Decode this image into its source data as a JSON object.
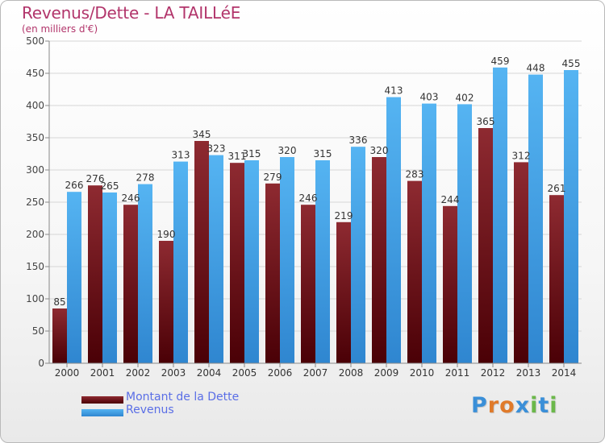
{
  "title": "Revenus/Dette - LA TAILLéE",
  "subtitle": "(en milliers d'€)",
  "chart_data": {
    "type": "bar",
    "categories": [
      "2000",
      "2001",
      "2002",
      "2003",
      "2004",
      "2005",
      "2006",
      "2007",
      "2008",
      "2009",
      "2010",
      "2011",
      "2012",
      "2013",
      "2014"
    ],
    "series": [
      {
        "name": "Montant de la Dette",
        "values": [
          85,
          276,
          246,
          190,
          345,
          311,
          279,
          246,
          219,
          320,
          283,
          244,
          365,
          312,
          261
        ],
        "color": "#7b1f24"
      },
      {
        "name": "Revenus",
        "values": [
          266,
          265,
          278,
          313,
          323,
          315,
          320,
          315,
          336,
          413,
          403,
          402,
          459,
          448,
          455
        ],
        "color": "#4aa8ea"
      }
    ],
    "ylim": [
      0,
      500
    ],
    "yticks": [
      0,
      50,
      100,
      150,
      200,
      250,
      300,
      350,
      400,
      450,
      500
    ],
    "grid": true,
    "legend": "bottom-left"
  },
  "legend": {
    "items": [
      {
        "label": "Montant de la Dette",
        "color": "#6e1a1f"
      },
      {
        "label": "Revenus",
        "color": "#4aa8ea"
      }
    ]
  },
  "logo": {
    "letters": [
      "P",
      "r",
      "o",
      "x",
      "i",
      "t",
      "i"
    ],
    "colors": [
      "#3a8fd8",
      "#e07a2a",
      "#e07a2a",
      "#3a8fd8",
      "#6bb84a",
      "#3a8fd8",
      "#6bb84a"
    ]
  }
}
